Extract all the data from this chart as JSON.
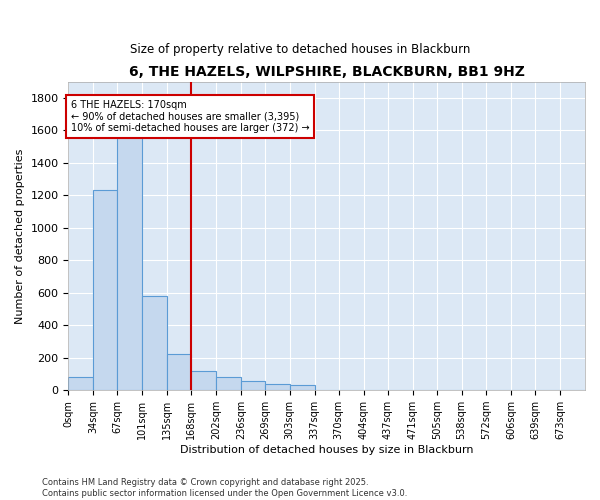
{
  "title": "6, THE HAZELS, WILPSHIRE, BLACKBURN, BB1 9HZ",
  "subtitle": "Size of property relative to detached houses in Blackburn",
  "xlabel": "Distribution of detached houses by size in Blackburn",
  "ylabel": "Number of detached properties",
  "footer": "Contains HM Land Registry data © Crown copyright and database right 2025.\nContains public sector information licensed under the Open Government Licence v3.0.",
  "bar_color": "#c5d8ee",
  "bar_edge_color": "#5b9bd5",
  "annotation_text": "6 THE HAZELS: 170sqm\n← 90% of detached houses are smaller (3,395)\n10% of semi-detached houses are larger (372) →",
  "vline_x": 168,
  "vline_color": "#cc0000",
  "annotation_box_color": "#cc0000",
  "background_color": "#dce8f5",
  "categories": [
    "0sqm",
    "34sqm",
    "67sqm",
    "101sqm",
    "135sqm",
    "168sqm",
    "202sqm",
    "236sqm",
    "269sqm",
    "303sqm",
    "337sqm",
    "370sqm",
    "404sqm",
    "437sqm",
    "471sqm",
    "505sqm",
    "538sqm",
    "572sqm",
    "606sqm",
    "639sqm",
    "673sqm"
  ],
  "bin_edges": [
    0,
    34,
    67,
    101,
    135,
    168,
    202,
    236,
    269,
    303,
    337,
    370,
    404,
    437,
    471,
    505,
    538,
    572,
    606,
    639,
    673,
    707
  ],
  "values": [
    80,
    1230,
    1660,
    580,
    220,
    120,
    80,
    55,
    40,
    30,
    0,
    0,
    0,
    0,
    0,
    0,
    0,
    0,
    0,
    0,
    0
  ],
  "ylim": [
    0,
    1900
  ],
  "yticks": [
    0,
    200,
    400,
    600,
    800,
    1000,
    1200,
    1400,
    1600,
    1800
  ]
}
